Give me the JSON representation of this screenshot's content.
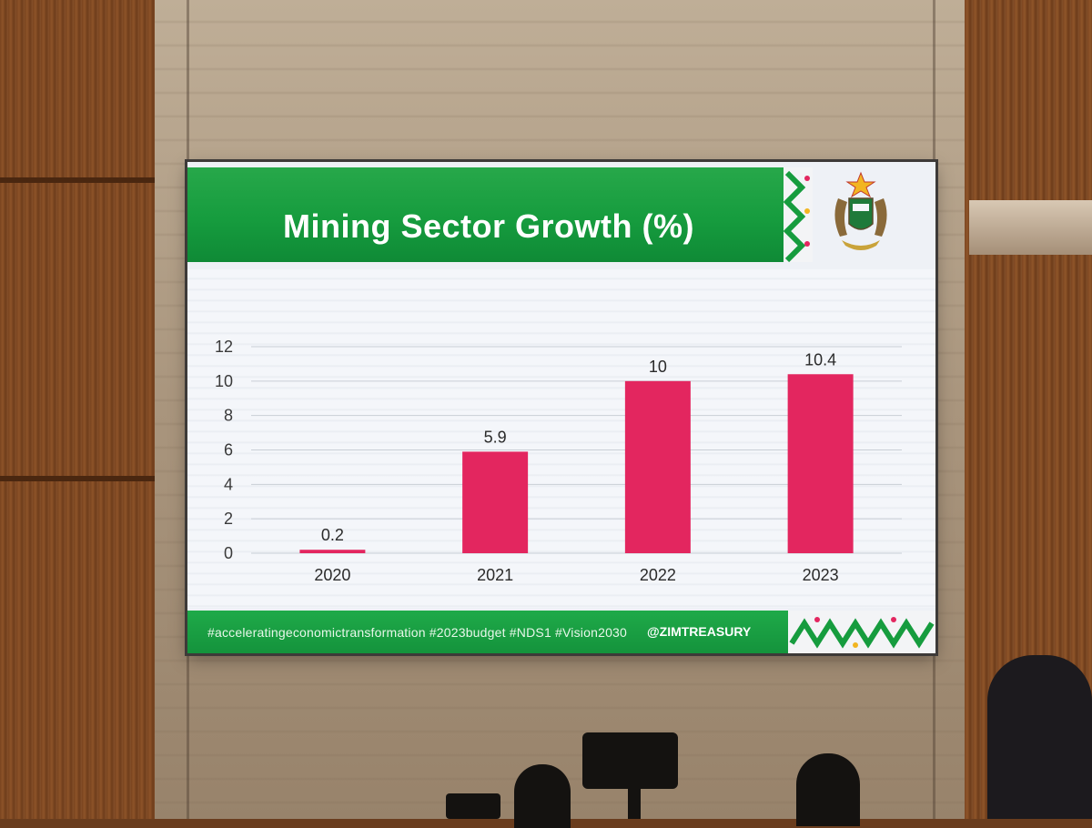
{
  "slide": {
    "title": "Mining Sector Growth (%)",
    "hashtags": "#acceleratingeconomictransformation #2023budget #NDS1 #Vision2030",
    "handle": "@ZIMTREASURY"
  },
  "colors": {
    "green": "#169c3e",
    "bar": "#e3265f",
    "background": "#eef1f6"
  },
  "chart_data": {
    "type": "bar",
    "categories": [
      "2020",
      "2021",
      "2022",
      "2023"
    ],
    "values": [
      0.2,
      5.9,
      10,
      10.4
    ],
    "data_labels": [
      "0.2",
      "5.9",
      "10",
      "10.4"
    ],
    "title": "Mining Sector Growth (%)",
    "xlabel": "",
    "ylabel": "",
    "ylim": [
      0,
      12
    ],
    "yticks": [
      0,
      2,
      4,
      6,
      8,
      10,
      12
    ],
    "grid": true,
    "legend": "none"
  }
}
